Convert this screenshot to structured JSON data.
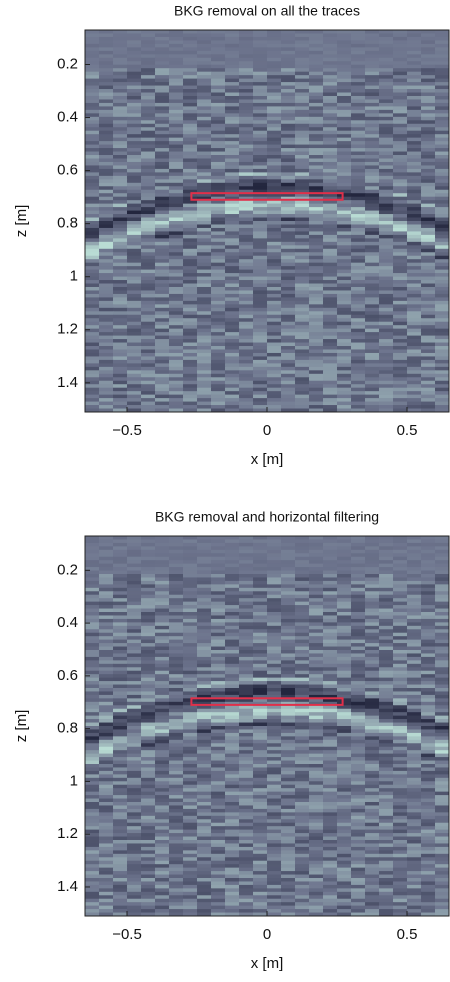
{
  "chart_data": [
    {
      "type": "image",
      "title": "BKG removal on all the traces",
      "xlabel": "x [m]",
      "ylabel": "z [m]",
      "xlim": [
        -0.65,
        0.65
      ],
      "ylim": [
        0.07,
        1.51
      ],
      "xticks": [
        {
          "value": -0.5,
          "label": "−0.5"
        },
        0,
        0.5
      ],
      "yticks": [
        0.2,
        0.4,
        0.6,
        0.8,
        1,
        1.2,
        1.4
      ],
      "highlight": {
        "x": [
          -0.27,
          0.27
        ],
        "y": [
          0.685,
          0.71
        ],
        "color": "#e0304a"
      }
    },
    {
      "type": "image",
      "title": "BKG removal and horizontal filtering",
      "xlabel": "x [m]",
      "ylabel": "z [m]",
      "xlim": [
        -0.65,
        0.65
      ],
      "ylim": [
        0.07,
        1.51
      ],
      "xticks": [
        {
          "value": -0.5,
          "label": "−0.5"
        },
        0,
        0.5
      ],
      "yticks": [
        0.2,
        0.4,
        0.6,
        0.8,
        1,
        1.2,
        1.4
      ],
      "highlight": {
        "x": [
          -0.27,
          0.27
        ],
        "y": [
          0.685,
          0.71
        ],
        "color": "#e0304a"
      }
    }
  ]
}
